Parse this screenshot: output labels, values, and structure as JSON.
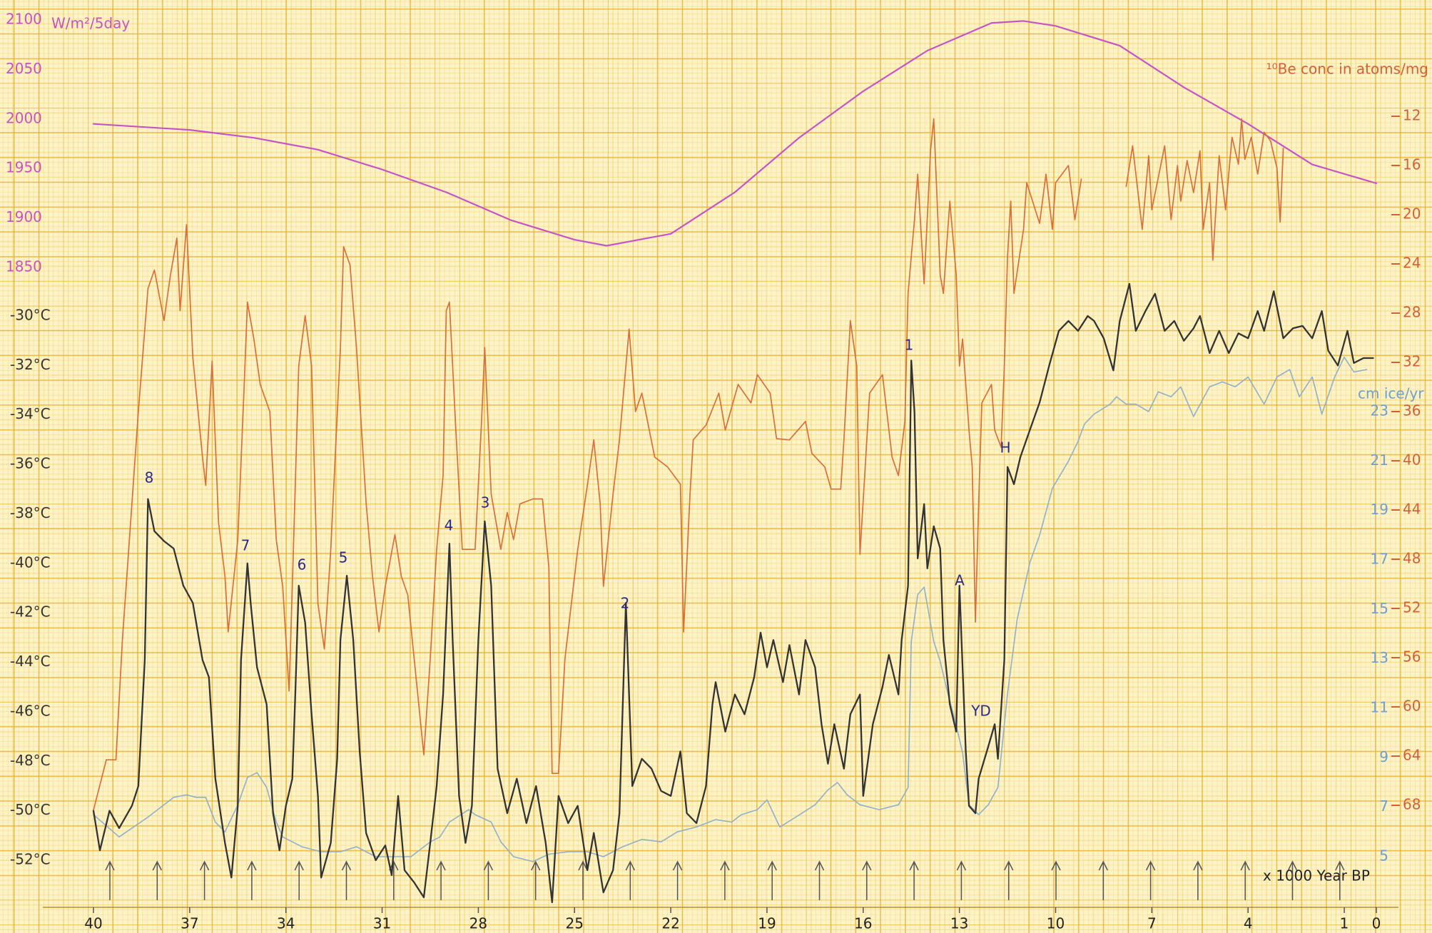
{
  "chart_data": {
    "type": "line",
    "x_label": "x 1000 Year BP",
    "xlim": [
      40,
      0
    ],
    "xticks": [
      40,
      37,
      34,
      31,
      28,
      25,
      22,
      19,
      16,
      13,
      10,
      7,
      4,
      1,
      0
    ],
    "axes": [
      {
        "label": "W/m²/5day",
        "color": "#c455c0",
        "lim": [
          1850,
          2100
        ],
        "ticks": [
          1850,
          1900,
          1950,
          2000,
          2050,
          2100
        ]
      },
      {
        "color": "#333333",
        "lim": [
          -52,
          -30
        ],
        "ticks": [
          {
            "value": -30,
            "label": "-30°C"
          },
          {
            "value": -32,
            "label": "-32°C"
          },
          {
            "value": -34,
            "label": "-34°C"
          },
          {
            "value": -36,
            "label": "-36°C"
          },
          {
            "value": -38,
            "label": "-38°C"
          },
          {
            "value": -40,
            "label": "-40°C"
          },
          {
            "value": -42,
            "label": "-42°C"
          },
          {
            "value": -44,
            "label": "-44°C"
          },
          {
            "value": -46,
            "label": "-46°C"
          },
          {
            "value": -48,
            "label": "-48°C"
          },
          {
            "value": -50,
            "label": "-50°C"
          },
          {
            "value": -52,
            "label": "-52°C"
          }
        ]
      },
      {
        "label": "¹⁰Be conc in atoms/mg",
        "color": "#d2603a",
        "lim": [
          68,
          12
        ],
        "ticks": [
          12,
          16,
          20,
          24,
          28,
          32,
          36,
          40,
          44,
          48,
          52,
          56,
          60,
          64,
          68
        ]
      },
      {
        "label": "cm ice/yr",
        "color": "#6f9fcf",
        "lim": [
          5,
          23
        ],
        "ticks": [
          5,
          7,
          9,
          11,
          13,
          15,
          17,
          19,
          21,
          23
        ]
      }
    ],
    "series": [
      {
        "axis": 0,
        "color": "#c455c8",
        "x": [
          40,
          37,
          35,
          33,
          31,
          29,
          27,
          25,
          24,
          22,
          20,
          18,
          16,
          14,
          12,
          11,
          10,
          8,
          6,
          4,
          2,
          0
        ],
        "values": [
          1995,
          1989,
          1981,
          1969,
          1949,
          1926,
          1898,
          1878,
          1872,
          1884,
          1926,
          1981,
          2028,
          2069,
          2097,
          2099,
          2094,
          2074,
          2032,
          1995,
          1954,
          1935
        ]
      },
      {
        "axis": 2,
        "color": "#d9703a",
        "x": [
          40.0,
          39.6,
          39.3,
          39.1,
          38.6,
          38.3,
          38.1,
          37.8,
          37.6,
          37.4,
          37.3,
          37.1,
          36.9,
          36.6,
          36.5,
          36.3,
          36.1,
          35.9,
          35.8,
          35.5,
          35.3,
          35.2,
          35.0,
          34.8,
          34.5,
          34.3,
          34.1,
          33.9,
          33.8,
          33.6,
          33.4,
          33.2,
          33.0,
          32.8,
          32.6,
          32.3,
          32.2,
          32.0,
          31.8,
          31.5,
          31.3,
          31.1,
          30.9,
          30.6,
          30.4,
          30.2,
          30.0,
          29.7,
          29.5,
          29.3,
          29.1,
          29.0,
          28.9,
          28.7,
          28.5,
          28.1,
          27.9,
          27.8,
          27.6,
          27.3,
          27.1,
          26.9,
          26.7,
          26.3,
          26.0,
          25.8,
          25.7,
          25.5,
          25.3,
          25.1,
          24.9,
          24.6,
          24.4,
          24.2,
          24.1,
          23.8,
          23.6,
          23.3,
          23.1,
          22.9,
          22.5,
          22.1,
          21.7,
          21.6,
          21.4,
          21.3,
          20.9,
          20.5,
          20.3,
          19.9,
          19.5,
          19.3,
          18.9,
          18.7,
          18.3,
          17.8,
          17.6,
          17.2,
          17.0,
          16.7,
          16.6,
          16.4,
          16.2,
          16.1,
          15.8,
          15.4,
          15.1,
          14.9,
          14.7,
          14.6,
          14.4,
          14.3,
          14.2,
          14.1,
          13.9,
          13.8,
          13.6,
          13.5,
          13.3,
          13.1,
          13.0,
          12.9,
          12.7,
          12.6,
          12.5,
          12.4,
          12.3,
          12.0,
          11.9,
          11.7,
          11.6,
          11.5,
          11.4,
          11.3,
          11.0,
          10.9,
          10.5,
          10.3,
          10.1,
          10.0,
          9.6,
          9.4,
          9.2,
          8.5,
          7.8,
          7.6,
          7.3,
          7.1,
          7.0,
          6.8,
          6.6,
          6.4,
          6.2,
          6.1,
          5.9,
          5.7,
          5.5,
          5.4,
          5.2,
          5.1,
          4.9,
          4.7,
          4.5,
          4.3,
          4.2,
          4.1,
          3.9,
          3.7,
          3.5,
          3.3,
          3.1,
          3.0,
          2.9
        ],
        "values": [
          68.4,
          64.3,
          64.3,
          54.6,
          36.0,
          26.0,
          24.5,
          28.6,
          24.9,
          21.9,
          27.8,
          20.8,
          31.6,
          39.7,
          42.0,
          31.9,
          45.0,
          49.4,
          53.9,
          46.4,
          33.8,
          27.1,
          30.1,
          33.8,
          36.0,
          46.4,
          50.2,
          58.7,
          50.2,
          32.3,
          28.2,
          32.3,
          51.6,
          55.3,
          47.2,
          30.8,
          22.6,
          24.1,
          30.8,
          43.4,
          49.4,
          53.9,
          50.2,
          46.0,
          49.4,
          50.9,
          56.1,
          63.9,
          56.1,
          47.2,
          41.2,
          27.8,
          27.1,
          37.5,
          47.2,
          47.2,
          36.8,
          30.8,
          42.7,
          47.2,
          44.2,
          46.4,
          43.5,
          43.1,
          43.1,
          48.7,
          65.4,
          65.4,
          56.1,
          51.6,
          47.2,
          42.0,
          38.3,
          43.5,
          50.2,
          42.7,
          38.3,
          29.3,
          36.0,
          34.5,
          39.7,
          40.5,
          41.9,
          53.9,
          42.7,
          38.3,
          37.1,
          34.5,
          37.5,
          33.8,
          35.3,
          33.0,
          34.5,
          38.2,
          38.3,
          36.8,
          39.4,
          40.5,
          42.3,
          42.3,
          38.3,
          28.6,
          32.3,
          47.6,
          34.5,
          33.0,
          39.7,
          41.2,
          36.8,
          26.4,
          20.4,
          16.7,
          21.2,
          25.6,
          14.8,
          12.2,
          24.9,
          26.4,
          18.9,
          24.9,
          32.3,
          30.1,
          37.5,
          40.5,
          53.1,
          43.5,
          35.3,
          33.8,
          37.5,
          38.9,
          32.3,
          23.4,
          18.9,
          26.4,
          21.2,
          17.4,
          20.7,
          16.7,
          21.2,
          17.4,
          16.0,
          20.4,
          17.1,
          null,
          17.7,
          14.4,
          21.2,
          15.2,
          19.6,
          17.0,
          14.4,
          20.4,
          16.0,
          18.9,
          15.6,
          18.2,
          14.8,
          21.2,
          17.4,
          23.7,
          15.2,
          19.6,
          13.7,
          15.9,
          12.2,
          15.5,
          13.7,
          16.7,
          13.3,
          14.0,
          16.2,
          20.6,
          14.6
        ]
      },
      {
        "axis": 3,
        "color": "#8fb0cc",
        "x": [
          40.0,
          39.2,
          38.3,
          37.8,
          37.5,
          37.1,
          36.8,
          36.5,
          36.2,
          35.9,
          35.5,
          35.2,
          34.9,
          34.6,
          34.3,
          34.1,
          33.5,
          32.9,
          32.3,
          31.8,
          31.2,
          30.6,
          30.1,
          29.5,
          29.2,
          28.9,
          28.3,
          28.1,
          27.6,
          27.3,
          26.9,
          26.3,
          25.8,
          25.2,
          24.6,
          24.1,
          23.5,
          22.9,
          22.3,
          21.8,
          21.2,
          20.6,
          20.1,
          19.8,
          19.3,
          19.0,
          18.6,
          18.1,
          17.5,
          17.1,
          16.8,
          16.5,
          16.1,
          15.5,
          14.9,
          14.6,
          14.5,
          14.3,
          14.1,
          13.8,
          13.6,
          13.4,
          13.1,
          12.9,
          12.7,
          12.4,
          12.1,
          11.8,
          11.5,
          11.2,
          10.8,
          10.5,
          10.1,
          9.6,
          9.3,
          9.1,
          8.8,
          8.3,
          8.1,
          7.8,
          7.5,
          7.1,
          6.8,
          6.4,
          6.1,
          5.7,
          5.2,
          4.8,
          4.4,
          4.0,
          3.5,
          3.1,
          2.7,
          2.4,
          2.0,
          1.7,
          1.3,
          1.0,
          0.7,
          0.3
        ],
        "values": [
          6.7,
          5.8,
          6.6,
          7.1,
          7.4,
          7.5,
          7.4,
          7.4,
          6.4,
          6.0,
          7.1,
          8.2,
          8.4,
          7.8,
          6.4,
          5.8,
          5.4,
          5.2,
          5.2,
          5.4,
          5.0,
          5.0,
          5.0,
          5.6,
          5.8,
          6.4,
          6.9,
          6.7,
          6.4,
          5.6,
          5.0,
          4.8,
          5.1,
          5.2,
          5.2,
          5.0,
          5.4,
          5.7,
          5.6,
          6.0,
          6.2,
          6.5,
          6.4,
          6.7,
          6.9,
          7.3,
          6.2,
          6.6,
          7.1,
          7.7,
          8.0,
          7.5,
          7.1,
          6.9,
          7.1,
          7.8,
          13.7,
          15.6,
          15.9,
          13.7,
          12.9,
          11.8,
          10.3,
          9.2,
          7.1,
          6.7,
          7.1,
          7.8,
          11.6,
          14.6,
          16.9,
          18.0,
          19.9,
          21.0,
          21.8,
          22.5,
          22.9,
          23.3,
          23.6,
          23.3,
          23.3,
          23.0,
          23.8,
          23.6,
          24.0,
          22.8,
          24.0,
          24.2,
          24.0,
          24.4,
          23.3,
          24.4,
          24.7,
          23.6,
          24.4,
          22.9,
          24.4,
          25.2,
          24.6,
          24.7
        ]
      },
      {
        "axis": 1,
        "color": "#333333",
        "x": [
          40.0,
          39.8,
          39.5,
          39.2,
          38.8,
          38.6,
          38.4,
          38.3,
          38.1,
          37.8,
          37.5,
          37.2,
          36.9,
          36.6,
          36.4,
          36.2,
          35.9,
          35.7,
          35.5,
          35.4,
          35.2,
          35.1,
          34.9,
          34.6,
          34.4,
          34.2,
          34.0,
          33.8,
          33.7,
          33.6,
          33.4,
          33.2,
          33.0,
          32.9,
          32.6,
          32.4,
          32.3,
          32.1,
          31.9,
          31.7,
          31.5,
          31.2,
          30.9,
          30.7,
          30.5,
          30.3,
          30.0,
          29.7,
          29.5,
          29.3,
          29.1,
          28.9,
          28.8,
          28.6,
          28.4,
          28.2,
          28.0,
          27.8,
          27.6,
          27.4,
          27.1,
          26.8,
          26.5,
          26.2,
          25.9,
          25.7,
          25.5,
          25.2,
          24.9,
          24.6,
          24.4,
          24.1,
          23.8,
          23.6,
          23.4,
          23.2,
          22.9,
          22.6,
          22.3,
          22.0,
          21.7,
          21.5,
          21.2,
          20.9,
          20.7,
          20.6,
          20.3,
          20.0,
          19.7,
          19.4,
          19.2,
          19.0,
          18.8,
          18.5,
          18.3,
          18.0,
          17.8,
          17.5,
          17.3,
          17.1,
          16.9,
          16.6,
          16.4,
          16.1,
          16.0,
          15.7,
          15.4,
          15.2,
          14.9,
          14.8,
          14.6,
          14.5,
          14.4,
          14.3,
          14.1,
          14.0,
          13.8,
          13.6,
          13.5,
          13.3,
          13.1,
          13.0,
          12.8,
          12.7,
          12.5,
          12.4,
          12.1,
          11.9,
          11.8,
          11.6,
          11.5,
          11.3,
          11.1,
          10.8,
          10.5,
          10.2,
          9.9,
          9.6,
          9.3,
          9.0,
          8.8,
          8.5,
          8.2,
          8.0,
          7.7,
          7.5,
          7.2,
          6.9,
          6.6,
          6.3,
          6.0,
          5.7,
          5.5,
          5.2,
          4.9,
          4.6,
          4.3,
          4.0,
          3.7,
          3.5,
          3.2,
          2.9,
          2.6,
          2.3,
          2.0,
          1.7,
          1.5,
          1.2,
          0.9,
          0.7,
          0.4,
          0.1
        ],
        "values": [
          -50.0,
          -51.6,
          -50.0,
          -50.7,
          -49.8,
          -49.0,
          -43.9,
          -37.4,
          -38.7,
          -39.1,
          -39.4,
          -40.9,
          -41.6,
          -43.9,
          -44.6,
          -48.7,
          -51.3,
          -52.7,
          -49.8,
          -43.9,
          -40.0,
          -41.6,
          -44.2,
          -45.7,
          -50.1,
          -51.6,
          -49.8,
          -48.7,
          -45.0,
          -40.9,
          -42.4,
          -46.1,
          -49.4,
          -52.7,
          -51.3,
          -47.9,
          -43.1,
          -40.5,
          -43.1,
          -47.6,
          -50.9,
          -52.0,
          -51.4,
          -52.6,
          -49.4,
          -52.4,
          -52.9,
          -53.5,
          -51.3,
          -49.0,
          -45.3,
          -39.2,
          -43.1,
          -49.4,
          -51.3,
          -49.8,
          -43.1,
          -38.3,
          -40.9,
          -48.3,
          -50.1,
          -48.7,
          -50.5,
          -49.0,
          -51.3,
          -53.7,
          -49.4,
          -50.5,
          -49.8,
          -52.4,
          -50.9,
          -53.3,
          -52.4,
          -50.1,
          -41.6,
          -49.0,
          -47.9,
          -48.3,
          -49.2,
          -49.4,
          -47.6,
          -50.1,
          -50.5,
          -49.0,
          -45.7,
          -44.8,
          -46.8,
          -45.3,
          -46.1,
          -44.6,
          -42.8,
          -44.2,
          -43.1,
          -44.8,
          -43.3,
          -45.3,
          -43.1,
          -44.2,
          -46.5,
          -48.1,
          -46.5,
          -48.3,
          -46.1,
          -45.3,
          -49.4,
          -46.5,
          -45.0,
          -43.7,
          -45.3,
          -43.1,
          -40.9,
          -31.8,
          -33.9,
          -39.8,
          -37.6,
          -40.2,
          -38.5,
          -39.4,
          -43.1,
          -45.7,
          -46.8,
          -40.9,
          -47.6,
          -49.8,
          -50.1,
          -48.7,
          -47.4,
          -46.5,
          -47.9,
          -43.9,
          -36.1,
          -36.8,
          -35.7,
          -34.6,
          -33.5,
          -32.0,
          -30.6,
          -30.2,
          -30.6,
          -30.0,
          -30.2,
          -30.9,
          -32.2,
          -30.2,
          -28.7,
          -30.6,
          -29.8,
          -29.1,
          -30.6,
          -30.2,
          -31.0,
          -30.5,
          -30.0,
          -31.5,
          -30.6,
          -31.5,
          -30.7,
          -30.9,
          -29.8,
          -30.6,
          -29.0,
          -30.9,
          -30.5,
          -30.4,
          -30.9,
          -29.8,
          -31.4,
          -32.0,
          -30.6,
          -31.9,
          -31.7,
          -31.7
        ]
      }
    ],
    "annotations": [
      "8",
      "7",
      "6",
      "5",
      "4",
      "3",
      "2",
      "1",
      "A",
      "YD",
      "H"
    ]
  }
}
